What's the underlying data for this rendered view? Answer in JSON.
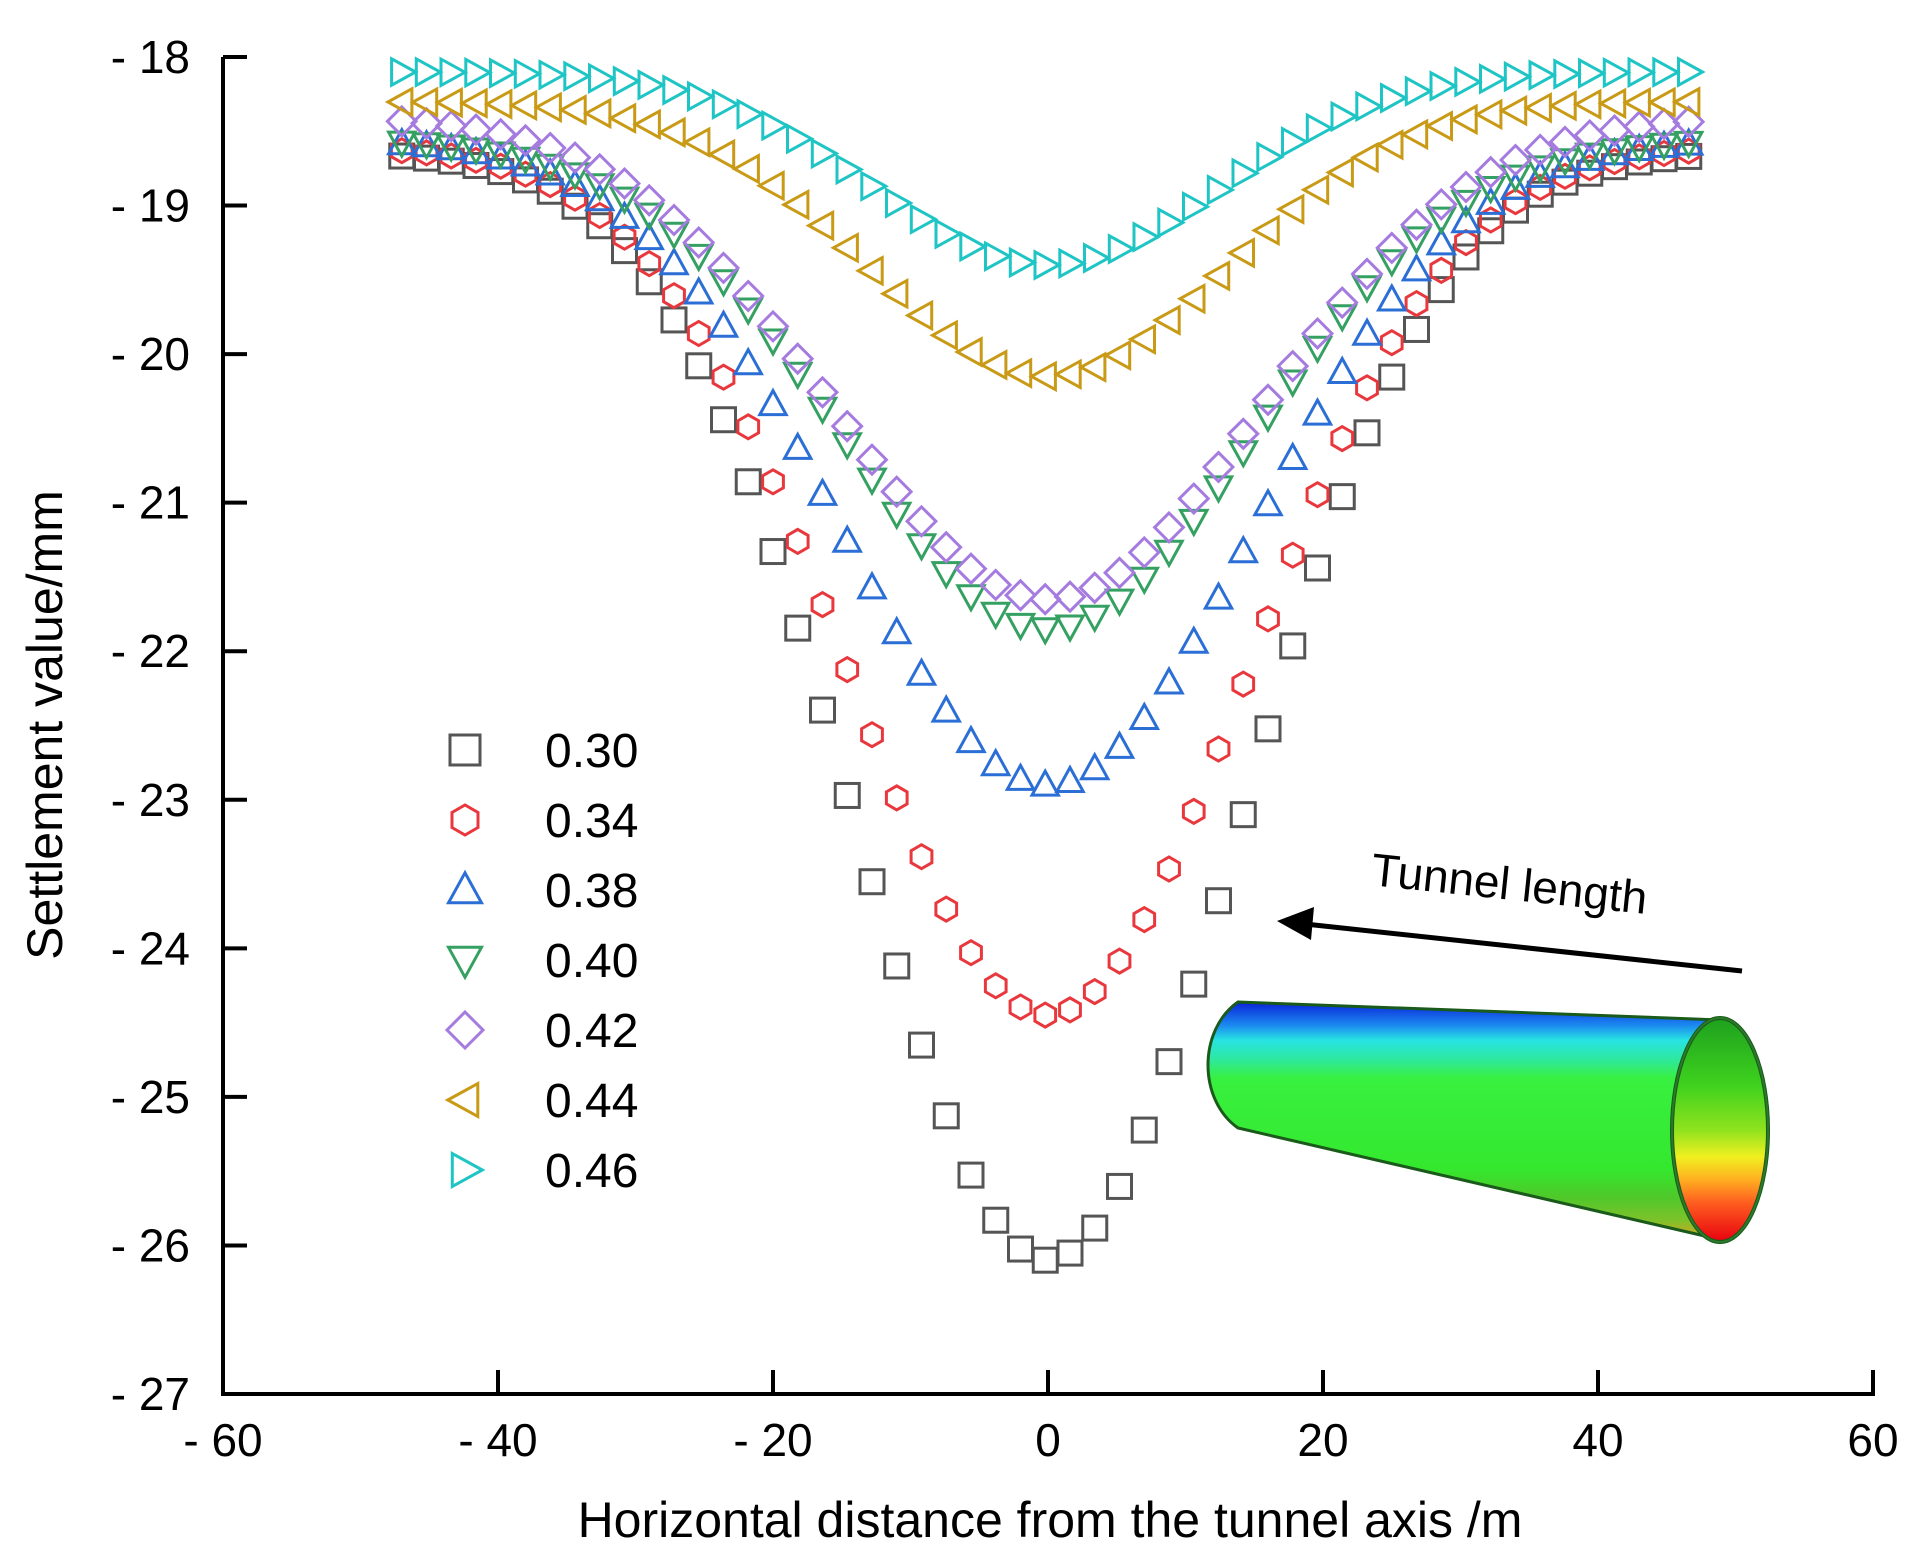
{
  "chart_data": {
    "type": "scatter",
    "title": "",
    "xlabel": "Horizontal distance from the tunnel axis /m",
    "ylabel": "Settlement value/mm",
    "xlim": [
      -60,
      60
    ],
    "ylim": [
      -27,
      -18
    ],
    "x_ticks": [
      -60,
      -40,
      -20,
      0,
      20,
      40,
      60
    ],
    "x_tick_labels": [
      "- 60",
      "- 40",
      "- 20",
      "0",
      "20",
      "40",
      "60"
    ],
    "y_ticks": [
      -18,
      -19,
      -20,
      -21,
      -22,
      -23,
      -24,
      -25,
      -26,
      -27
    ],
    "y_tick_labels": [
      "- 18",
      "- 19",
      "- 20",
      "- 21",
      "- 22",
      "- 23",
      "- 24",
      "- 25",
      "- 26",
      "- 27"
    ],
    "x_range": [
      -47,
      47
    ],
    "x_step": 1.8,
    "curve_model": "gaussian",
    "series": [
      {
        "name": "0.30",
        "marker": "square",
        "color": "#555555",
        "edge": -18.64,
        "min": -26.1,
        "width": 14.0
      },
      {
        "name": "0.34",
        "marker": "hexagon",
        "color": "#e8383d",
        "edge": -18.6,
        "min": -24.45,
        "width": 14.5
      },
      {
        "name": "0.38",
        "marker": "triangle-up",
        "color": "#2b6fd6",
        "edge": -18.55,
        "min": -22.9,
        "width": 15.0
      },
      {
        "name": "0.40",
        "marker": "triangle-down",
        "color": "#34a061",
        "edge": -18.55,
        "min": -21.85,
        "width": 15.0
      },
      {
        "name": "0.42",
        "marker": "diamond",
        "color": "#a57be0",
        "edge": -18.4,
        "min": -21.65,
        "width": 15.5
      },
      {
        "name": "0.44",
        "marker": "triangle-left",
        "color": "#c99a16",
        "edge": -18.3,
        "min": -20.15,
        "width": 13.0
      },
      {
        "name": "0.46",
        "marker": "triangle-right",
        "color": "#1fc4c4",
        "edge": -18.1,
        "min": -19.4,
        "width": 12.5
      }
    ],
    "annotations": [
      {
        "text": "Tunnel length",
        "type": "arrow"
      }
    ],
    "inset": "tunnel-model-illustration"
  }
}
